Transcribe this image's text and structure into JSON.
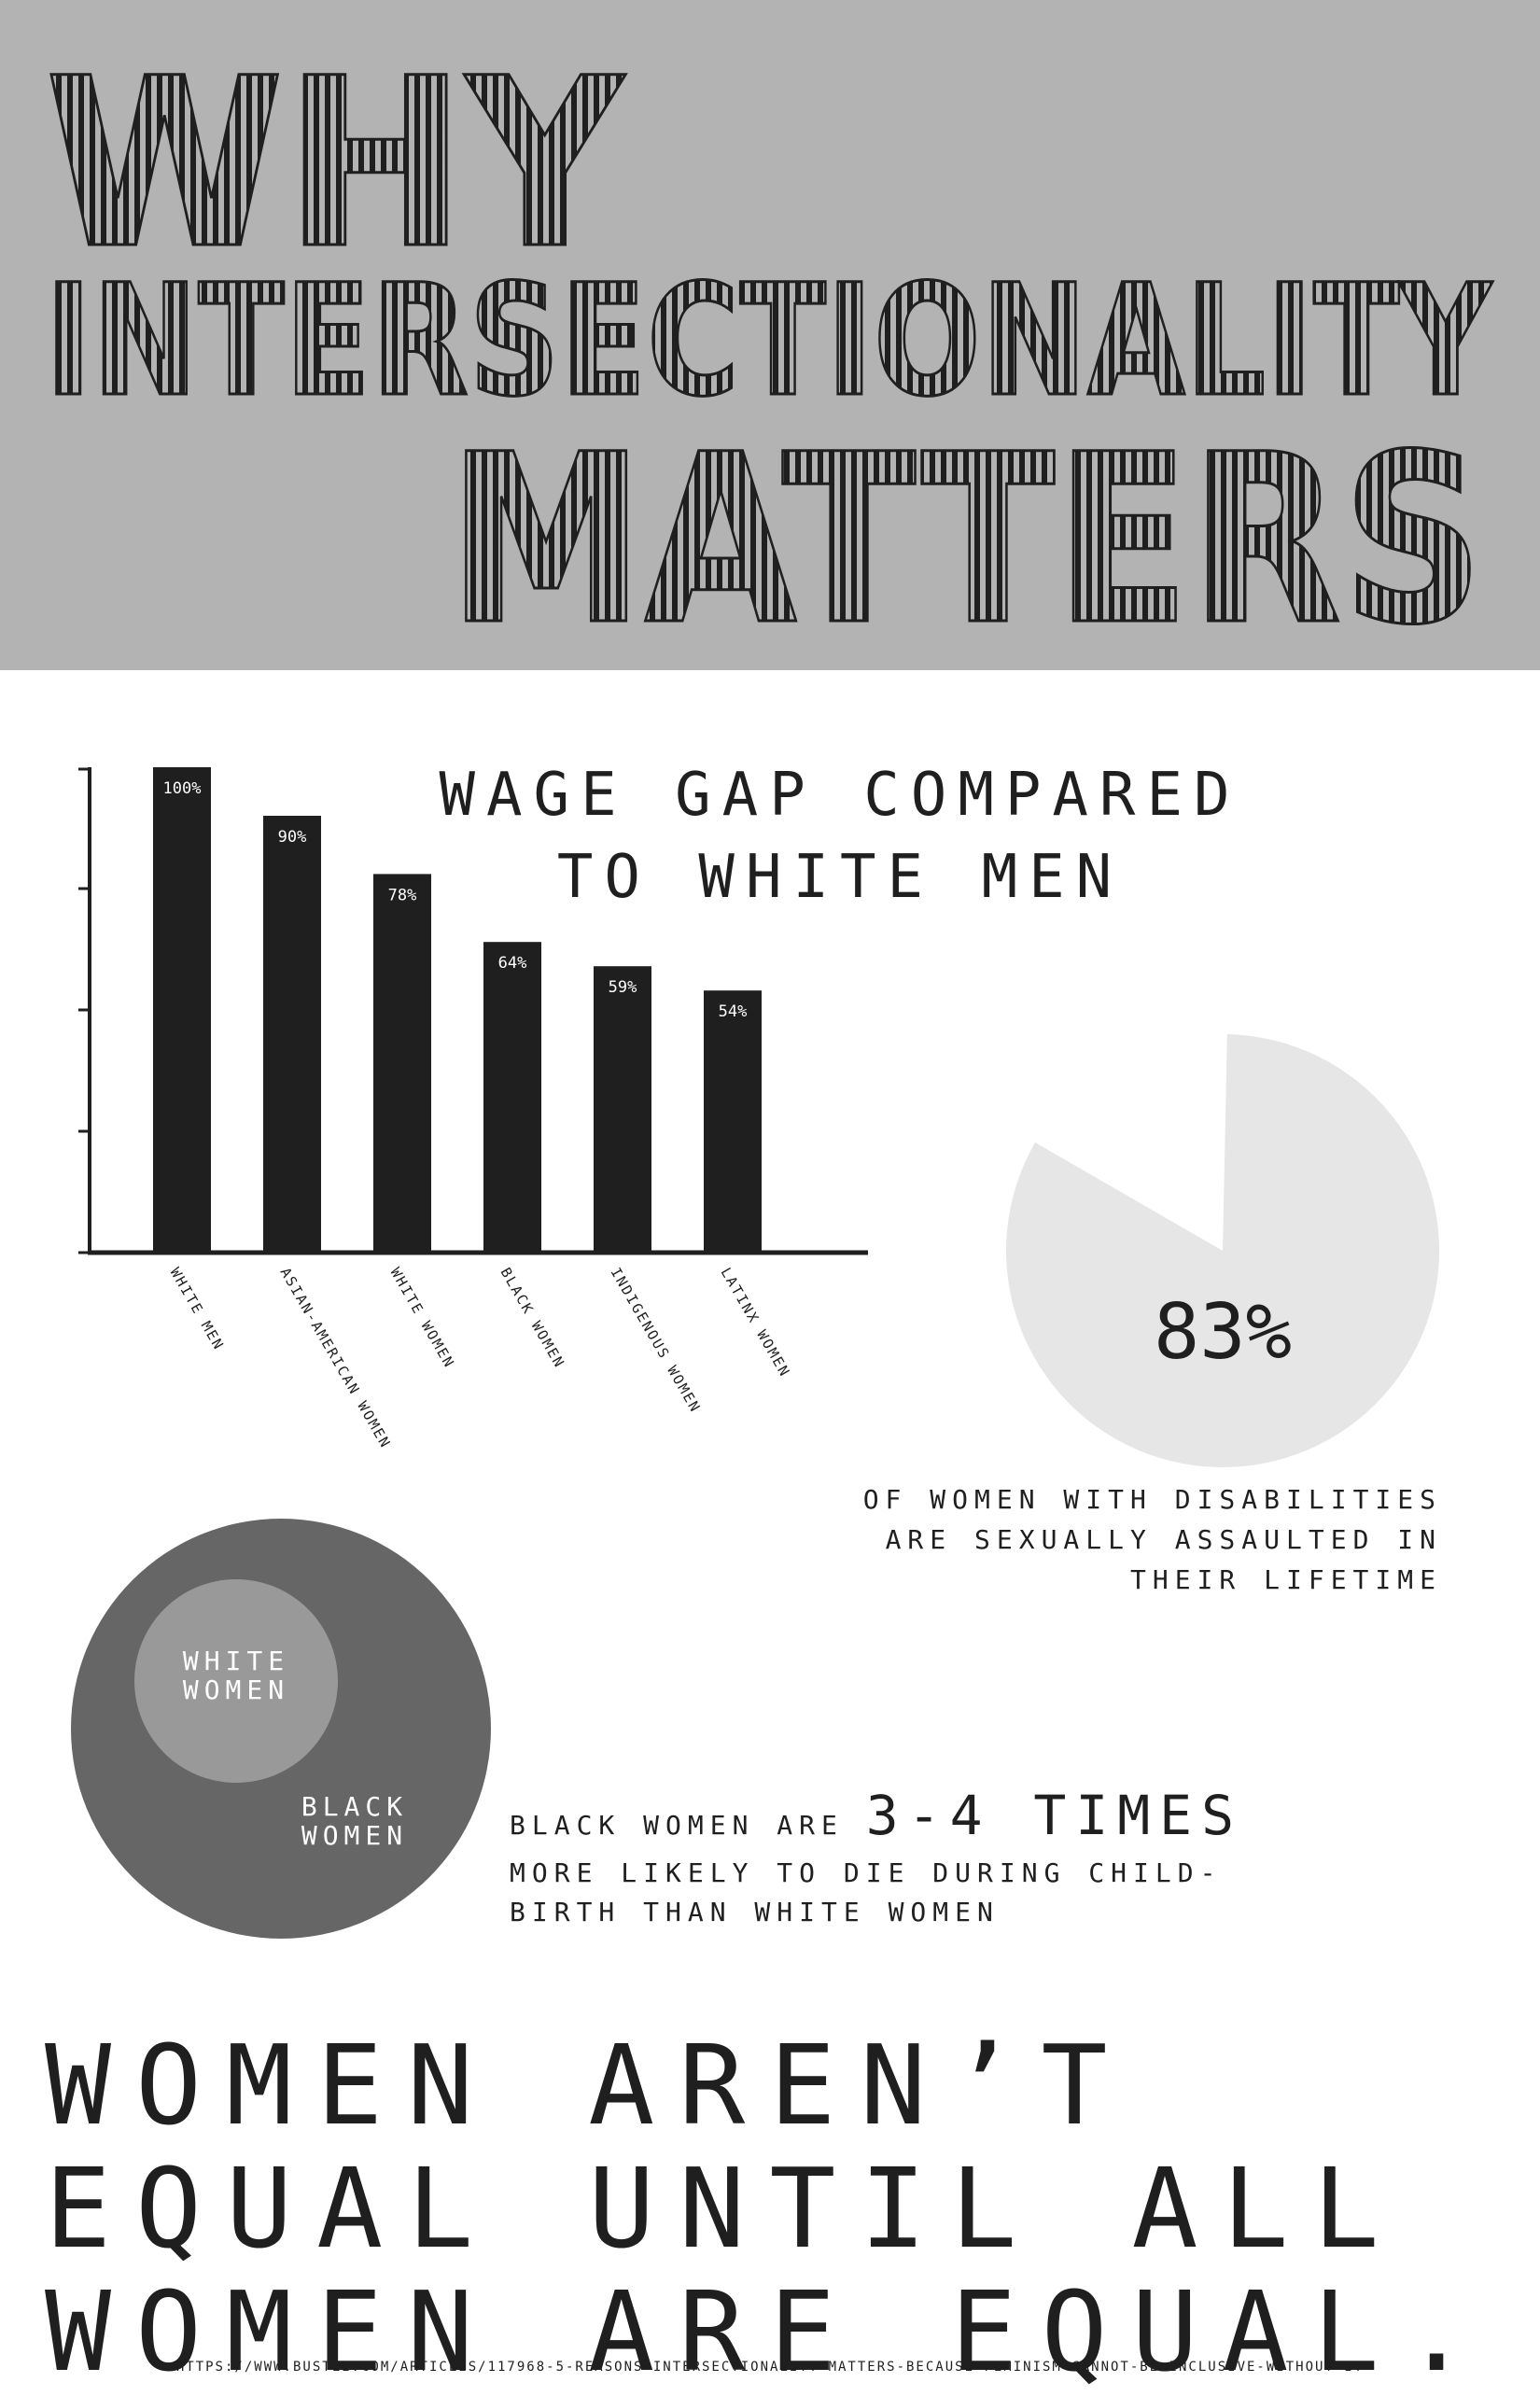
{
  "header": {
    "title_line1": "WHY",
    "title_line2": "INTERSECTIONALITY",
    "title_line3": "MATTERS",
    "background_color": "#b3b3b3"
  },
  "chart_data": {
    "type": "bar",
    "title_line1": "Wage gap compared",
    "title_line2": "to white men",
    "categories": [
      "White men",
      "Asian-American women",
      "White women",
      "Black women",
      "Indigenous women",
      "Latinx women"
    ],
    "values": [
      100,
      90,
      78,
      64,
      59,
      54
    ],
    "value_labels": [
      "100%",
      "90%",
      "78%",
      "64%",
      "59%",
      "54%"
    ],
    "ylim": [
      0,
      100
    ],
    "bar_color": "#1f1f1f"
  },
  "disability_stat": {
    "value": 83,
    "value_label": "83%",
    "caption_line1": "of women with disabilities",
    "caption_line2": "are sexually assaulted in",
    "caption_line3": "their lifetime",
    "pie_color": "#e6e6e6"
  },
  "maternal_stat": {
    "inner_label_line1": "WHITE",
    "inner_label_line2": "WOMEN",
    "outer_label_line1": "BLACK",
    "outer_label_line2": "WOMEN",
    "text_prefix": "Black women are",
    "text_highlight": "3-4 times",
    "text_line2": "more likely to die during child-",
    "text_line3": "birth than white women",
    "outer_color": "#666666",
    "inner_color": "#999999"
  },
  "slogan": {
    "line1": "Women aren’t",
    "line2": "equal until all",
    "line3": "women are equal."
  },
  "source": {
    "url": "https://www.bustle.com/articles/117968-5-reasons-intersectionality-matters-because-feminism-cannot-be-inclusive-without-it"
  }
}
